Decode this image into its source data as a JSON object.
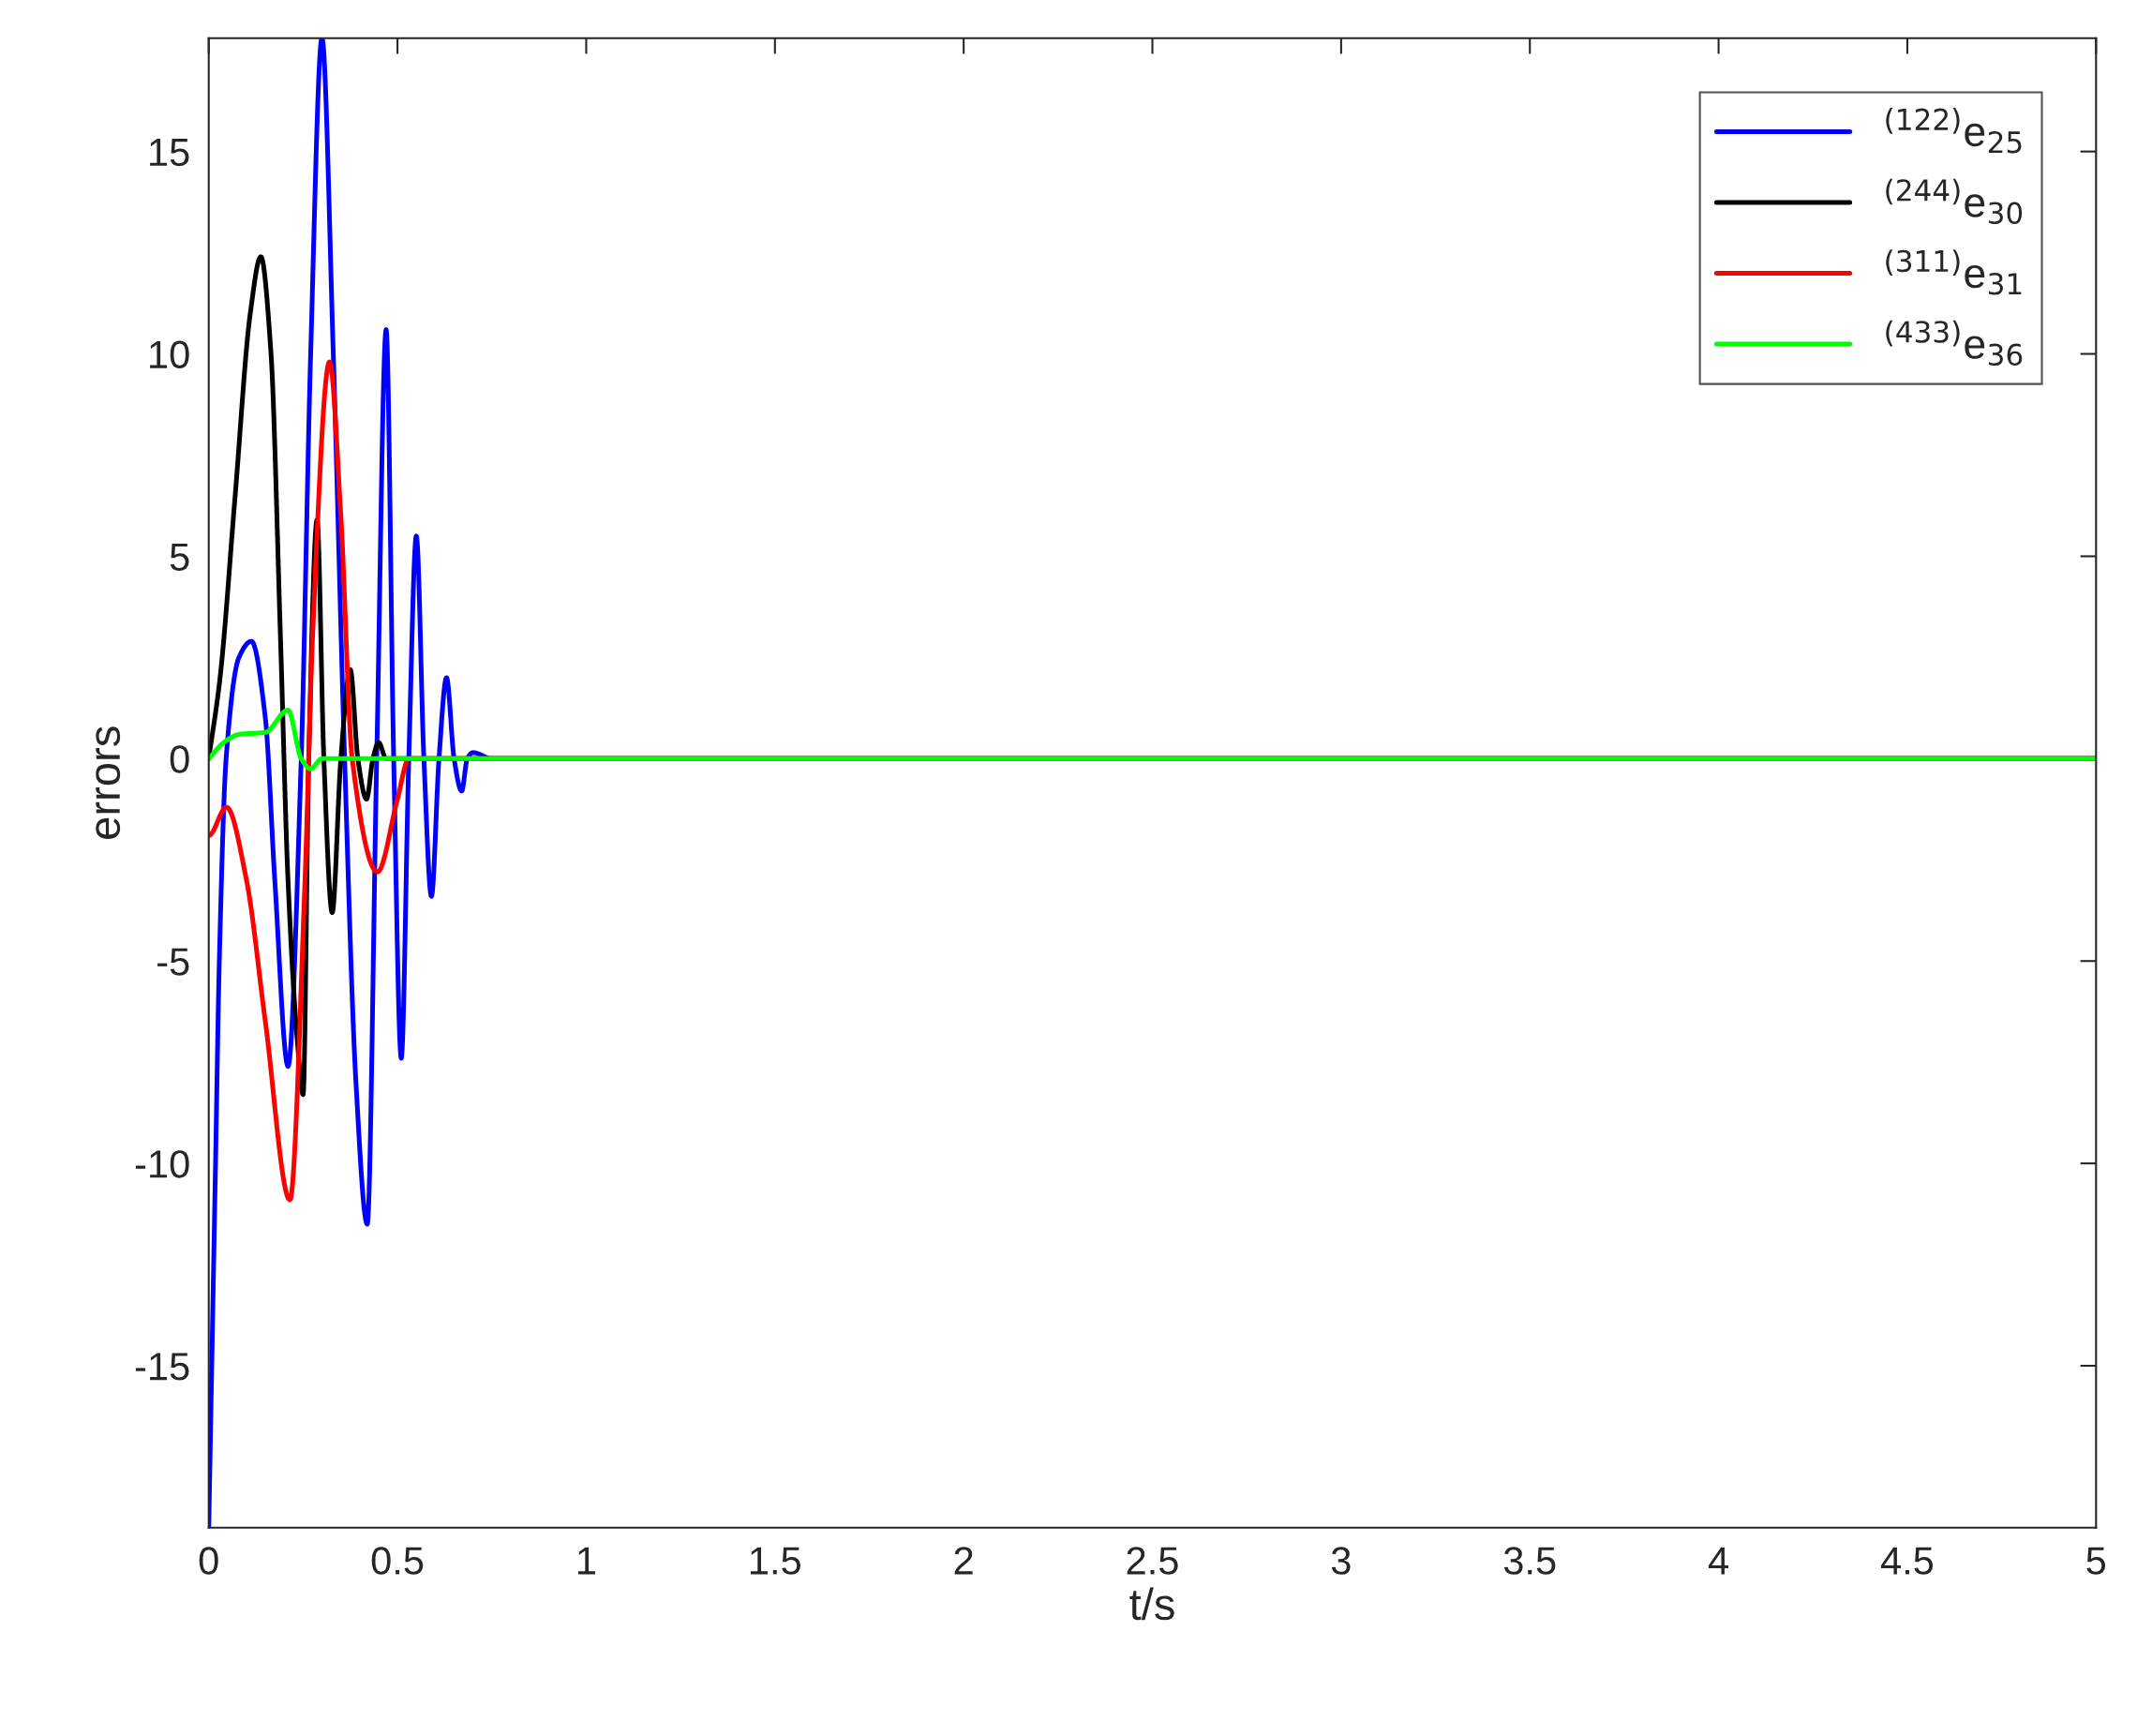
{
  "chart_data": {
    "type": "line",
    "xlabel": "t/s",
    "ylabel": "errors",
    "xlim": [
      0,
      5
    ],
    "xticks": [
      0,
      0.5,
      1,
      1.5,
      2,
      2.5,
      3,
      3.5,
      4,
      4.5,
      5
    ],
    "ylim": [
      -19,
      17.8
    ],
    "yticks": [
      -15,
      -10,
      -5,
      0,
      5,
      10,
      15
    ],
    "grid": false,
    "legend": "top right",
    "marker": "none",
    "line_style": "solid",
    "series": [
      {
        "name": "$^{(122)}$e$_{25}$",
        "color": "#0000ff",
        "x": [
          0,
          0.008,
          0.018,
          0.028,
          0.046,
          0.08,
          0.113,
          0.15,
          0.175,
          0.21,
          0.245,
          0.27,
          0.3,
          0.33,
          0.36,
          0.39,
          0.42,
          0.445,
          0.47,
          0.49,
          0.51,
          0.53,
          0.55,
          0.57,
          0.59,
          0.61,
          0.63,
          0.65,
          0.67,
          0.685,
          0.7,
          0.75,
          5
        ],
        "values": [
          -19,
          -15,
          -10,
          -5,
          0,
          2.5,
          2.9,
          1,
          -3,
          -7.6,
          0,
          10,
          17.8,
          10,
          0,
          -8,
          -11.5,
          0,
          10.6,
          0,
          -7.4,
          0,
          5.5,
          0,
          -3.4,
          0,
          2.0,
          0,
          -0.8,
          0,
          0.15,
          0,
          0
        ]
      },
      {
        "name": "$^{(244)}$e$_{30}$",
        "color": "#000000",
        "x": [
          0,
          0.03,
          0.07,
          0.11,
          0.138,
          0.165,
          0.19,
          0.21,
          0.235,
          0.25,
          0.265,
          0.287,
          0.305,
          0.327,
          0.35,
          0.375,
          0.395,
          0.418,
          0.435,
          0.45,
          0.47,
          5
        ],
        "values": [
          0,
          2,
          6.5,
          11,
          12.4,
          10,
          3,
          -3,
          -7,
          -8.3,
          0,
          5.9,
          0,
          -3.8,
          0,
          2.2,
          0,
          -1.0,
          0,
          0.4,
          0,
          0
        ]
      },
      {
        "name": "$^{(311)}$e$_{31}$",
        "color": "#ff0000",
        "x": [
          0,
          0.047,
          0.1,
          0.15,
          0.215,
          0.255,
          0.275,
          0.32,
          0.35,
          0.38,
          0.447,
          0.5,
          0.53,
          5
        ],
        "values": [
          -1.9,
          -1.2,
          -3,
          -6.5,
          -10.9,
          -3,
          3,
          9.8,
          6,
          0,
          -2.8,
          -1,
          0,
          0
        ]
      },
      {
        "name": "$^{(433)}$e$_{36}$",
        "color": "#00ff00",
        "x": [
          0,
          0.04,
          0.08,
          0.15,
          0.21,
          0.245,
          0.27,
          0.3,
          5
        ],
        "values": [
          0,
          0.4,
          0.6,
          0.65,
          1.2,
          0,
          -0.25,
          0,
          0
        ]
      }
    ]
  }
}
